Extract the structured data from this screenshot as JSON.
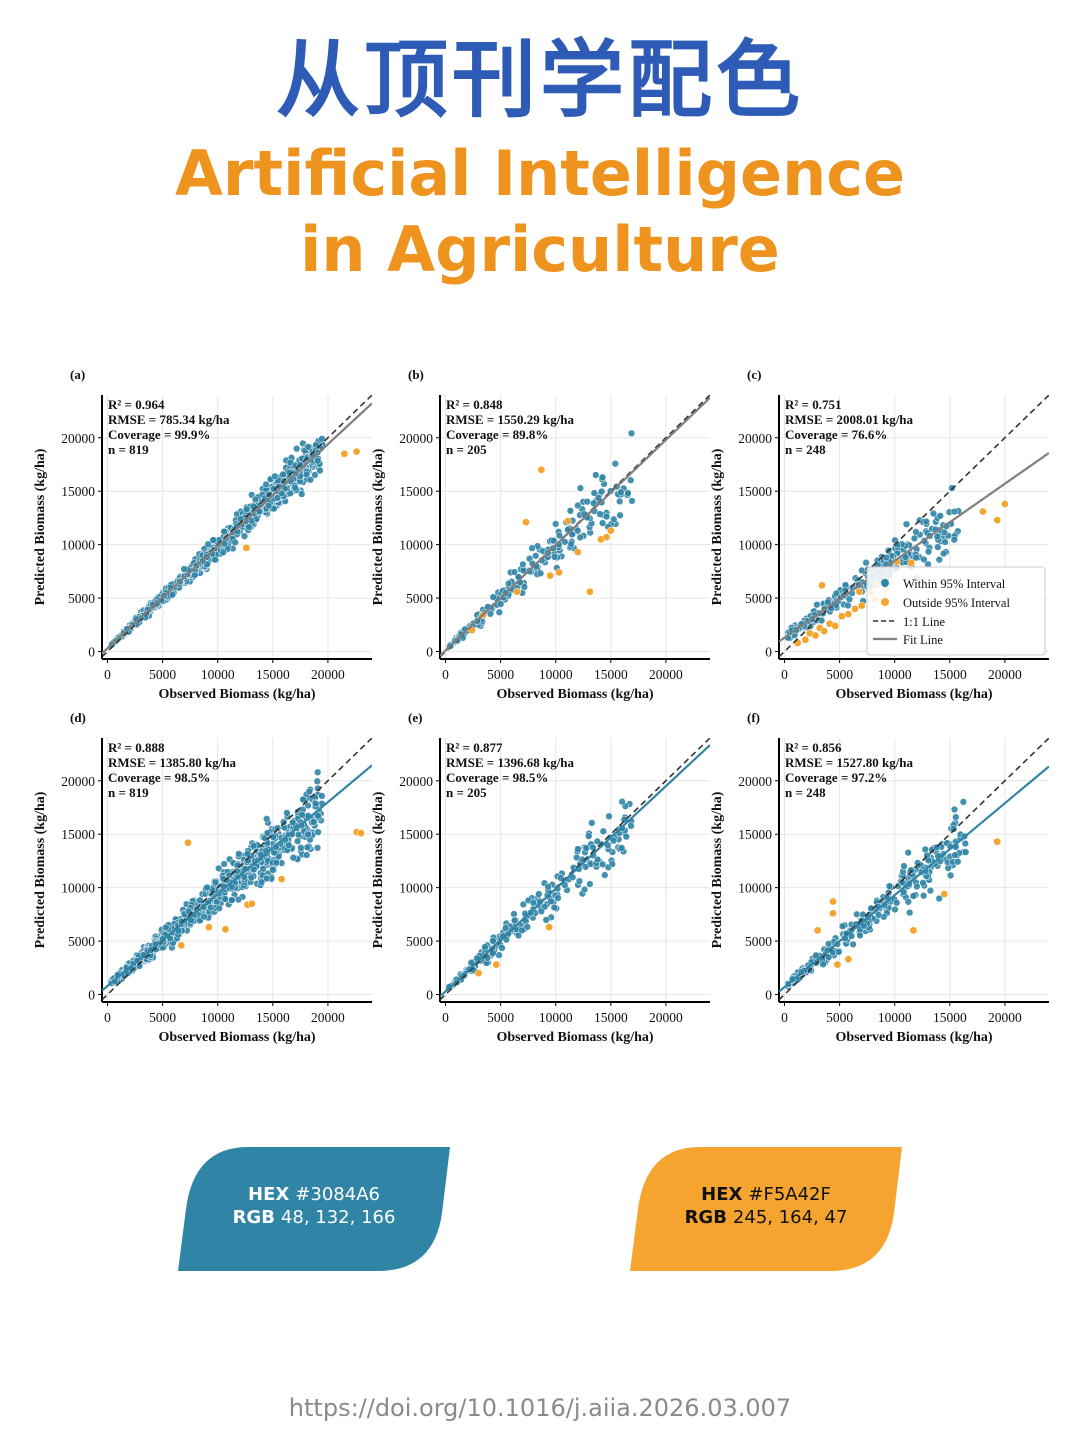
{
  "header": {
    "title_cn": "从顶刊学配色",
    "title_en_line1": "Artificial Intelligence",
    "title_en_line2": "in Agriculture"
  },
  "colors": {
    "title_blue": "#2d5bb5",
    "title_orange": "#ee931e",
    "within": "#3084A6",
    "outside": "#F5A42F",
    "fit_gray": "#808080"
  },
  "legend": {
    "within": "Within 95% Interval",
    "outside": "Outside 95% Interval",
    "one_to_one": "1:1 Line",
    "fit": "Fit Line"
  },
  "chart_data": [
    {
      "type": "scatter",
      "panel": "(a)",
      "xlabel": "Observed Biomass (kg/ha)",
      "ylabel": "Predicted Biomass (kg/ha)",
      "xlim": [
        -500,
        24000
      ],
      "ylim": [
        -700,
        24000
      ],
      "xticks": [
        0,
        5000,
        10000,
        15000,
        20000
      ],
      "yticks": [
        0,
        5000,
        10000,
        15000,
        20000
      ],
      "grid": true,
      "stats": [
        "R² = 0.964",
        "RMSE = 785.34 kg/ha",
        "Coverage = 99.9%",
        "n = 819"
      ],
      "n": 819,
      "fit": {
        "slope": 0.955,
        "intercept": 300,
        "color": "#808080"
      },
      "spread": 0.075,
      "xmax": 19500,
      "outliers": [
        [
          12600,
          9700
        ],
        [
          21500,
          18500
        ],
        [
          22600,
          18700
        ]
      ],
      "legend": false
    },
    {
      "type": "scatter",
      "panel": "(b)",
      "xlabel": "Observed Biomass (kg/ha)",
      "ylabel": "Predicted Biomass (kg/ha)",
      "xlim": [
        -500,
        24000
      ],
      "ylim": [
        -700,
        24000
      ],
      "xticks": [
        0,
        5000,
        10000,
        15000,
        20000
      ],
      "yticks": [
        0,
        5000,
        10000,
        15000,
        20000
      ],
      "grid": true,
      "stats": [
        "R² = 0.848",
        "RMSE = 1550.29 kg/ha",
        "Coverage = 89.8%",
        "n = 205"
      ],
      "n": 205,
      "fit": {
        "slope": 0.985,
        "intercept": 100,
        "color": "#808080"
      },
      "spread": 0.14,
      "xmax": 17000,
      "outliers": [
        [
          2400,
          2000
        ],
        [
          3400,
          3400
        ],
        [
          6500,
          5600
        ],
        [
          7300,
          12100
        ],
        [
          8700,
          17000
        ],
        [
          9500,
          7100
        ],
        [
          10300,
          7400
        ],
        [
          11100,
          12200
        ],
        [
          12000,
          9300
        ],
        [
          13100,
          5600
        ],
        [
          14100,
          10500
        ],
        [
          14600,
          10700
        ],
        [
          15000,
          11300
        ]
      ],
      "legend": false
    },
    {
      "type": "scatter",
      "panel": "(c)",
      "xlabel": "Observed Biomass (kg/ha)",
      "ylabel": "Predicted Biomass (kg/ha)",
      "xlim": [
        -500,
        24000
      ],
      "ylim": [
        -700,
        24000
      ],
      "xticks": [
        0,
        5000,
        10000,
        15000,
        20000
      ],
      "yticks": [
        0,
        5000,
        10000,
        15000,
        20000
      ],
      "grid": true,
      "stats": [
        "R² = 0.751",
        "RMSE = 2008.01 kg/ha",
        "Coverage = 76.6%",
        "n = 248"
      ],
      "n": 248,
      "fit": {
        "slope": 0.72,
        "intercept": 1300,
        "color": "#808080"
      },
      "spread": 0.16,
      "xmax": 16000,
      "outliers": [
        [
          1200,
          800
        ],
        [
          1900,
          1100
        ],
        [
          2300,
          1700
        ],
        [
          2800,
          1500
        ],
        [
          3200,
          2200
        ],
        [
          3600,
          1900
        ],
        [
          4100,
          2600
        ],
        [
          4600,
          2400
        ],
        [
          5200,
          3300
        ],
        [
          5800,
          3500
        ],
        [
          6400,
          4000
        ],
        [
          7000,
          4300
        ],
        [
          7800,
          5500
        ],
        [
          8400,
          6300
        ],
        [
          9200,
          5900
        ],
        [
          10200,
          8400
        ],
        [
          11500,
          8300
        ],
        [
          18000,
          13100
        ],
        [
          19300,
          12300
        ],
        [
          20000,
          13800
        ],
        [
          3400,
          6200
        ],
        [
          6800,
          5600
        ],
        [
          8200,
          4900
        ]
      ],
      "legend": true
    },
    {
      "type": "scatter",
      "panel": "(d)",
      "xlabel": "Observed Biomass (kg/ha)",
      "ylabel": "Predicted Biomass (kg/ha)",
      "xlim": [
        -500,
        24000
      ],
      "ylim": [
        -700,
        24000
      ],
      "xticks": [
        0,
        5000,
        10000,
        15000,
        20000
      ],
      "yticks": [
        0,
        5000,
        10000,
        15000,
        20000
      ],
      "grid": true,
      "stats": [
        "R² = 0.888",
        "RMSE = 1385.80 kg/ha",
        "Coverage = 98.5%",
        "n = 819"
      ],
      "n": 819,
      "fit": {
        "slope": 0.86,
        "intercept": 800,
        "color": "#3084A6"
      },
      "spread": 0.13,
      "xmax": 19500,
      "outliers": [
        [
          7300,
          14200
        ],
        [
          9200,
          6300
        ],
        [
          10700,
          6100
        ],
        [
          12700,
          8400
        ],
        [
          13100,
          8500
        ],
        [
          15800,
          10800
        ],
        [
          22600,
          15200
        ],
        [
          23000,
          15100
        ],
        [
          6700,
          4600
        ]
      ],
      "legend": false
    },
    {
      "type": "scatter",
      "panel": "(e)",
      "xlabel": "Observed Biomass (kg/ha)",
      "ylabel": "Predicted Biomass (kg/ha)",
      "xlim": [
        -500,
        24000
      ],
      "ylim": [
        -700,
        24000
      ],
      "xticks": [
        0,
        5000,
        10000,
        15000,
        20000
      ],
      "yticks": [
        0,
        5000,
        10000,
        15000,
        20000
      ],
      "grid": true,
      "stats": [
        "R² = 0.877",
        "RMSE = 1396.68 kg/ha",
        "Coverage = 98.5%",
        "n = 205"
      ],
      "n": 205,
      "fit": {
        "slope": 0.96,
        "intercept": 300,
        "color": "#3084A6"
      },
      "spread": 0.15,
      "xmax": 17000,
      "outliers": [
        [
          3000,
          2000
        ],
        [
          4600,
          2800
        ],
        [
          9400,
          6300
        ]
      ],
      "legend": false
    },
    {
      "type": "scatter",
      "panel": "(f)",
      "xlabel": "Observed Biomass (kg/ha)",
      "ylabel": "Predicted Biomass (kg/ha)",
      "xlim": [
        -500,
        24000
      ],
      "ylim": [
        -700,
        24000
      ],
      "xticks": [
        0,
        5000,
        10000,
        15000,
        20000
      ],
      "yticks": [
        0,
        5000,
        10000,
        15000,
        20000
      ],
      "grid": true,
      "stats": [
        "R² = 0.856",
        "RMSE = 1527.80 kg/ha",
        "Coverage = 97.2%",
        "n = 248"
      ],
      "n": 248,
      "fit": {
        "slope": 0.86,
        "intercept": 700,
        "color": "#3084A6"
      },
      "spread": 0.16,
      "xmax": 16500,
      "outliers": [
        [
          3000,
          6000
        ],
        [
          4400,
          8700
        ],
        [
          4800,
          2800
        ],
        [
          5800,
          3300
        ],
        [
          4400,
          7600
        ],
        [
          11700,
          6000
        ],
        [
          14500,
          9400
        ],
        [
          19300,
          14300
        ]
      ],
      "legend": false
    }
  ],
  "swatches": [
    {
      "hex_label": "HEX",
      "hex_value": "#3084A6",
      "rgb_label": "RGB",
      "rgb_value": "48, 132, 166",
      "fill": "#3084A6",
      "text_color": "#ffffff"
    },
    {
      "hex_label": "HEX",
      "hex_value": "#F5A42F",
      "rgb_label": "RGB",
      "rgb_value": "245, 164, 47",
      "fill": "#F5A42F",
      "text_color": "#111111"
    }
  ],
  "footer": {
    "doi": "https://doi.org/10.1016/j.aiia.2026.03.007"
  }
}
